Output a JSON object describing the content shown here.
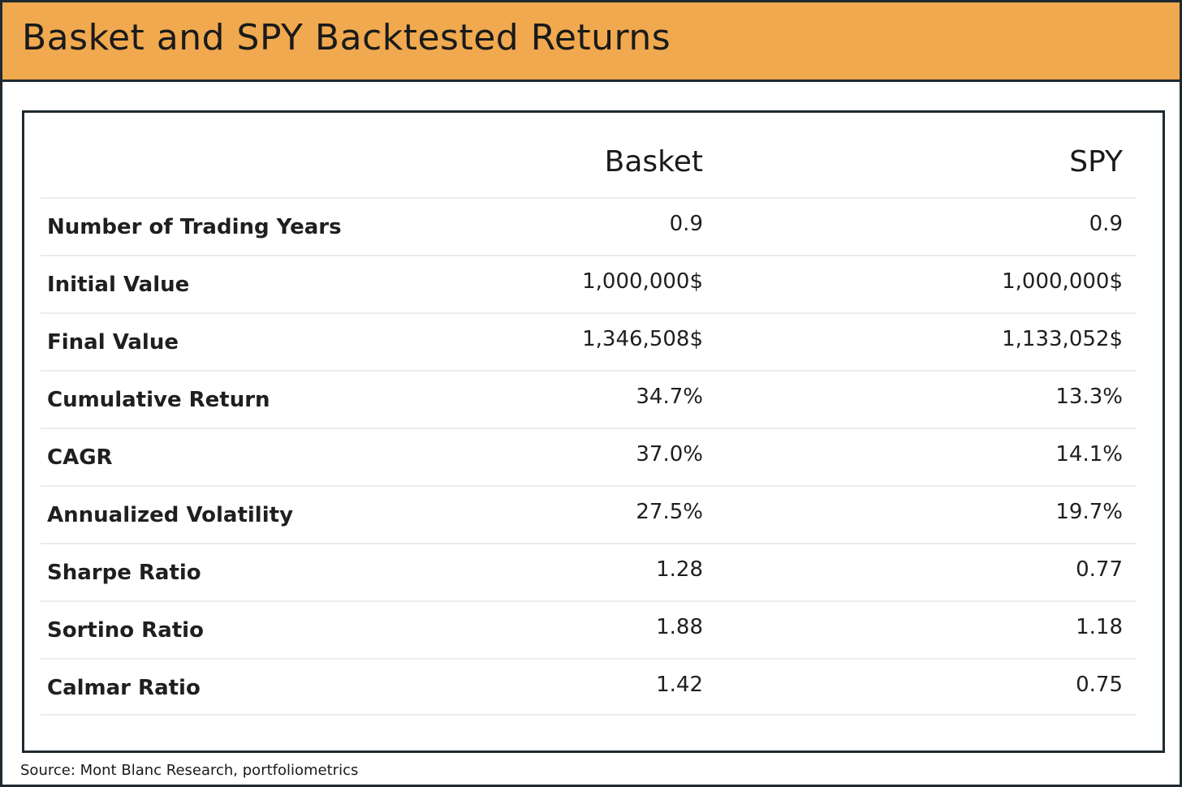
{
  "chart_data": {
    "type": "table",
    "title": "Basket and SPY Backtested Returns",
    "columns": [
      "",
      "Basket",
      "SPY"
    ],
    "rows": [
      {
        "label": "Number of Trading Years",
        "basket": "0.9",
        "spy": "0.9"
      },
      {
        "label": "Initial Value",
        "basket": "1,000,000$",
        "spy": "1,000,000$"
      },
      {
        "label": "Final Value",
        "basket": "1,346,508$",
        "spy": "1,133,052$"
      },
      {
        "label": "Cumulative Return",
        "basket": "34.7%",
        "spy": "13.3%"
      },
      {
        "label": "CAGR",
        "basket": "37.0%",
        "spy": "14.1%"
      },
      {
        "label": "Annualized Volatility",
        "basket": "27.5%",
        "spy": "19.7%"
      },
      {
        "label": "Sharpe Ratio",
        "basket": "1.28",
        "spy": "0.77"
      },
      {
        "label": "Sortino Ratio",
        "basket": "1.88",
        "spy": "1.18"
      },
      {
        "label": "Calmar Ratio",
        "basket": "1.42",
        "spy": "0.75"
      }
    ],
    "source": "Source: Mont Blanc Research, portfoliometrics"
  },
  "colors": {
    "header_bg": "#f0a94f",
    "border": "#1f2a30",
    "row_divider": "#e9ecef"
  }
}
